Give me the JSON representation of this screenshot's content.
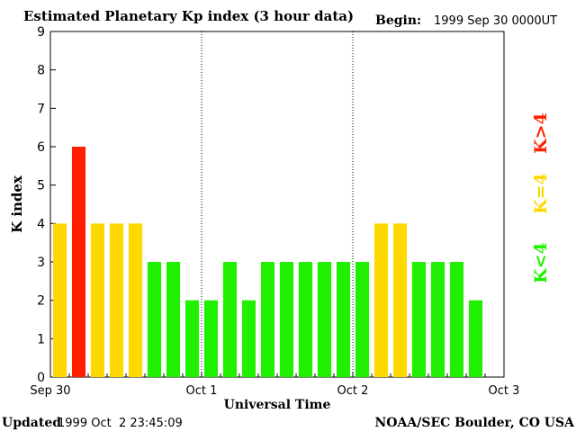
{
  "header": {
    "title": "Estimated Planetary Kp index (3 hour data)",
    "begin_label": "Begin:",
    "begin_value": "1999 Sep 30 0000UT"
  },
  "footer": {
    "updated_label": "Updated",
    "updated_value": "1999 Oct  2 23:45:09",
    "credit": "NOAA/SEC Boulder, CO USA"
  },
  "legend": {
    "high": {
      "label": "K>4",
      "color": "#ff2000"
    },
    "mid": {
      "label": "K=4",
      "color": "#ffd800"
    },
    "low": {
      "label": "K<4",
      "color": "#20f000"
    }
  },
  "chart_data": {
    "type": "bar",
    "title": "Estimated Planetary Kp index (3 hour data)",
    "xlabel": "Universal Time",
    "ylabel": "K index",
    "ylim": [
      0,
      9
    ],
    "yticks": [
      0,
      1,
      2,
      3,
      4,
      5,
      6,
      7,
      8,
      9
    ],
    "x_ticks": [
      "Sep 30",
      "Oct 1",
      "Oct 2",
      "Oct 3"
    ],
    "day_dividers": [
      "Oct 1",
      "Oct 2"
    ],
    "bars_per_day": 8,
    "values": [
      4,
      6,
      4,
      4,
      4,
      3,
      3,
      2,
      2,
      3,
      2,
      3,
      3,
      3,
      3,
      3,
      3,
      4,
      4,
      3,
      3,
      3,
      2
    ],
    "colors": {
      "low": "#20f000",
      "mid": "#ffd800",
      "high": "#ff2000"
    },
    "grid": false
  }
}
